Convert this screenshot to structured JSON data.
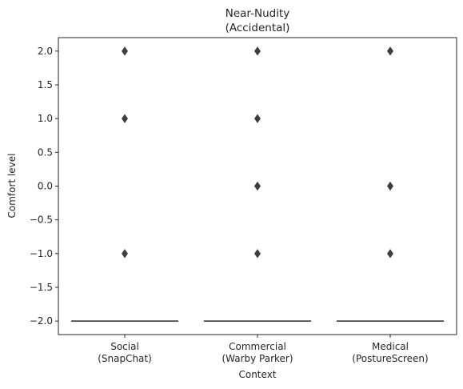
{
  "chart_data": {
    "type": "box",
    "title": [
      "Near-Nudity",
      "(Accidental)"
    ],
    "xlabel": "Context",
    "ylabel": "Comfort level",
    "ylim": [
      -2.2,
      2.2
    ],
    "yticks": [
      2.0,
      1.5,
      1.0,
      0.5,
      0.0,
      -0.5,
      -1.0,
      -1.5,
      -2.0
    ],
    "ytick_labels": [
      "2.0",
      "1.5",
      "1.0",
      "0.5",
      "0.0",
      "−0.5",
      "−1.0",
      "−1.5",
      "−2.0"
    ],
    "categories": [
      {
        "label": [
          "Social",
          "(SnapChat)"
        ],
        "median": -2,
        "q1": -2,
        "q3": -2,
        "whisker_low": -2,
        "whisker_high": -2,
        "outliers": [
          2,
          1,
          -1
        ]
      },
      {
        "label": [
          "Commercial",
          "(Warby Parker)"
        ],
        "median": -2,
        "q1": -2,
        "q3": -2,
        "whisker_low": -2,
        "whisker_high": -2,
        "outliers": [
          2,
          1,
          0,
          -1
        ]
      },
      {
        "label": [
          "Medical",
          "(PostureScreen)"
        ],
        "median": -2,
        "q1": -2,
        "q3": -2,
        "whisker_low": -2,
        "whisker_high": -2,
        "outliers": [
          2,
          0,
          -1
        ]
      }
    ],
    "grid": false,
    "colors": {
      "box_line": "#3f3f3f",
      "outlier": "#3f3f3f",
      "axis": "#262626"
    }
  }
}
